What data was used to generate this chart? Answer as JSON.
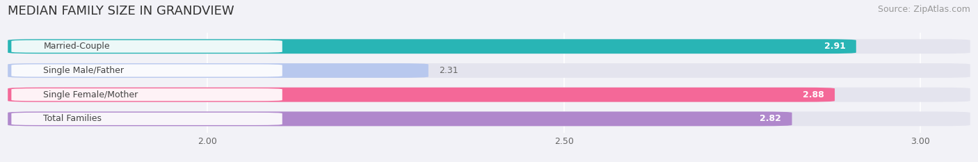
{
  "title": "MEDIAN FAMILY SIZE IN GRANDVIEW",
  "source": "Source: ZipAtlas.com",
  "categories": [
    "Married-Couple",
    "Single Male/Father",
    "Single Female/Mother",
    "Total Families"
  ],
  "values": [
    2.91,
    2.31,
    2.88,
    2.82
  ],
  "bar_colors": [
    "#29b5b5",
    "#b8c8ee",
    "#f46898",
    "#b088cc"
  ],
  "value_label_colors": [
    "white",
    "#666666",
    "white",
    "white"
  ],
  "xlim_left": 1.72,
  "xlim_right": 3.07,
  "xticks": [
    2.0,
    2.5,
    3.0
  ],
  "xtick_labels": [
    "2.00",
    "2.50",
    "3.00"
  ],
  "bg_color": "#f2f2f7",
  "bar_bg_color": "#e4e4ee",
  "title_fontsize": 13,
  "source_fontsize": 9,
  "bar_label_fontsize": 9,
  "value_fontsize": 9
}
